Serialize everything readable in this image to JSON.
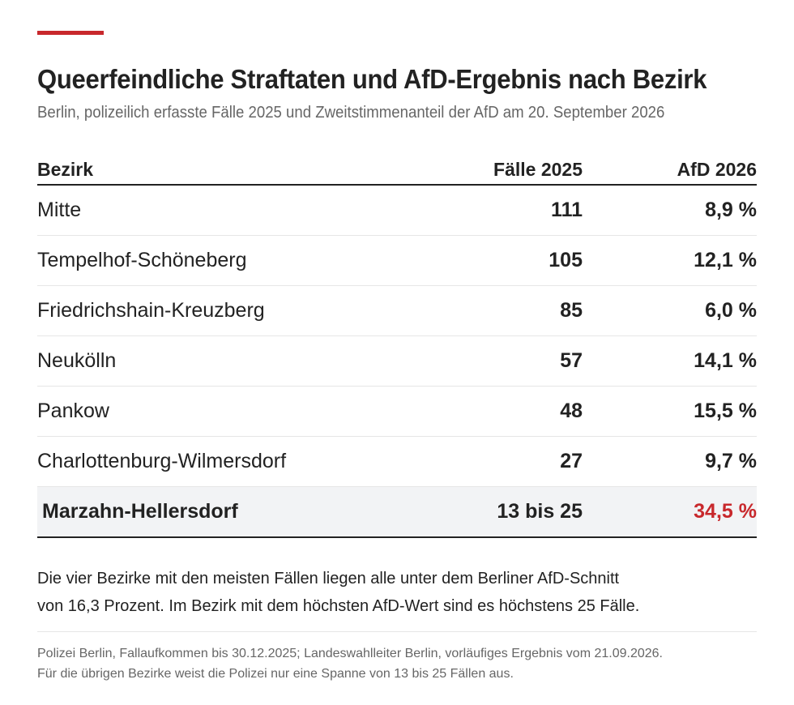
{
  "accent_color": "#c8282c",
  "title": "Queerfeindliche Straftaten und AfD-Ergebnis nach Bezirk",
  "subtitle": "Berlin, polizeilich erfasste Fälle 2025 und Zweitstimmenanteil der AfD am 20. September 2026",
  "table": {
    "headers": [
      "Bezirk",
      "Fälle 2025",
      "AfD 2026"
    ],
    "rows": [
      {
        "bezirk": "Mitte",
        "faelle": "111",
        "afd": "8,9 %"
      },
      {
        "bezirk": "Tempelhof-Schöneberg",
        "faelle": "105",
        "afd": "12,1 %"
      },
      {
        "bezirk": "Friedrichshain-Kreuzberg",
        "faelle": "85",
        "afd": "6,0 %"
      },
      {
        "bezirk": "Neukölln",
        "faelle": "57",
        "afd": "14,1 %"
      },
      {
        "bezirk": "Pankow",
        "faelle": "48",
        "afd": "15,5 %"
      },
      {
        "bezirk": "Charlottenburg-Wilmersdorf",
        "faelle": "27",
        "afd": "9,7 %"
      },
      {
        "bezirk": "Marzahn-Hellersdorf",
        "faelle": "13 bis 25",
        "afd": "34,5 %",
        "highlight": true,
        "afd_color": "#c8282c"
      }
    ]
  },
  "note": [
    "Die vier Bezirke mit den meisten Fällen liegen alle unter dem Berliner AfD-Schnitt",
    "von 16,3 Prozent. Im Bezirk mit dem höchsten AfD-Wert sind es höchstens 25 Fälle."
  ],
  "source": [
    "Polizei Berlin, Fallaufkommen bis 30.12.2025; Landeswahlleiter Berlin, vorläufiges Ergebnis vom 21.09.2026.",
    "Für die übrigen Bezirke weist die Polizei nur eine Spanne von 13 bis 25 Fällen aus."
  ]
}
